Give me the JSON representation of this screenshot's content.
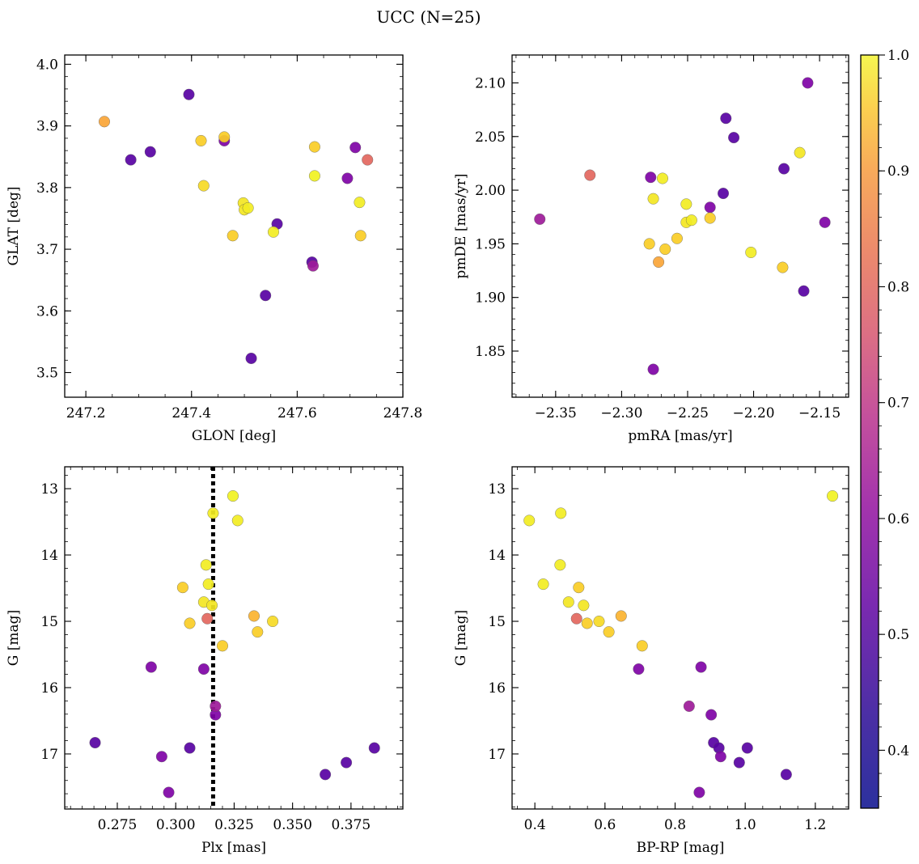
{
  "title": "UCC (N=25)",
  "colormap": "plasma",
  "colorbar": {
    "min": 0.35,
    "max": 1.0,
    "ticks": [
      0.4,
      0.5,
      0.6,
      0.7,
      0.8,
      0.9,
      1.0
    ],
    "tick_labels": [
      "0.4",
      "0.5",
      "0.6",
      "0.7",
      "0.8",
      "0.9",
      "1.0"
    ]
  },
  "chart_data": [
    {
      "type": "scatter",
      "xlabel": "GLON [deg]",
      "ylabel": "GLAT [deg]",
      "xlim": [
        247.16,
        247.8
      ],
      "ylim": [
        3.46,
        4.015
      ],
      "yinvert": false,
      "xticks": [
        247.2,
        247.4,
        247.6,
        247.8
      ],
      "xticklabels": [
        "247.2",
        "247.4",
        "247.6",
        "247.8"
      ],
      "yticks": [
        3.5,
        3.6,
        3.7,
        3.8,
        3.9,
        4.0
      ],
      "yticklabels": [
        "3.5",
        "3.6",
        "3.7",
        "3.8",
        "3.9",
        "4.0"
      ],
      "xminor": 0.05,
      "yminor": 0.02,
      "points": [
        {
          "x": 247.235,
          "y": 3.907,
          "c": 0.85
        },
        {
          "x": 247.285,
          "y": 3.845,
          "c": 0.38
        },
        {
          "x": 247.322,
          "y": 3.858,
          "c": 0.38
        },
        {
          "x": 247.395,
          "y": 3.951,
          "c": 0.38
        },
        {
          "x": 247.418,
          "y": 3.876,
          "c": 0.93
        },
        {
          "x": 247.462,
          "y": 3.876,
          "c": 0.45
        },
        {
          "x": 247.462,
          "y": 3.882,
          "c": 0.93
        },
        {
          "x": 247.423,
          "y": 3.803,
          "c": 0.95
        },
        {
          "x": 247.478,
          "y": 3.722,
          "c": 0.93
        },
        {
          "x": 247.498,
          "y": 3.775,
          "c": 0.97
        },
        {
          "x": 247.5,
          "y": 3.764,
          "c": 0.97
        },
        {
          "x": 247.507,
          "y": 3.767,
          "c": 0.98
        },
        {
          "x": 247.513,
          "y": 3.523,
          "c": 0.38
        },
        {
          "x": 247.54,
          "y": 3.625,
          "c": 0.38
        },
        {
          "x": 247.555,
          "y": 3.728,
          "c": 0.98
        },
        {
          "x": 247.562,
          "y": 3.741,
          "c": 0.38
        },
        {
          "x": 247.628,
          "y": 3.679,
          "c": 0.38
        },
        {
          "x": 247.63,
          "y": 3.673,
          "c": 0.52
        },
        {
          "x": 247.633,
          "y": 3.866,
          "c": 0.93
        },
        {
          "x": 247.633,
          "y": 3.819,
          "c": 0.99
        },
        {
          "x": 247.695,
          "y": 3.815,
          "c": 0.45
        },
        {
          "x": 247.71,
          "y": 3.865,
          "c": 0.45
        },
        {
          "x": 247.718,
          "y": 3.776,
          "c": 0.98
        },
        {
          "x": 247.72,
          "y": 3.722,
          "c": 0.93
        },
        {
          "x": 247.733,
          "y": 3.845,
          "c": 0.72
        }
      ]
    },
    {
      "type": "scatter",
      "xlabel": "pmRA [mas/yr]",
      "ylabel": "pmDE [mas/yr]",
      "xlim": [
        -2.383,
        -2.128
      ],
      "ylim": [
        1.807,
        2.126
      ],
      "yinvert": false,
      "xticks": [
        -2.35,
        -2.3,
        -2.25,
        -2.2,
        -2.15
      ],
      "xticklabels": [
        "−2.35",
        "−2.30",
        "−2.25",
        "−2.20",
        "−2.15"
      ],
      "yticks": [
        1.85,
        1.9,
        1.95,
        2.0,
        2.05,
        2.1
      ],
      "yticklabels": [
        "1.85",
        "1.90",
        "1.95",
        "2.00",
        "2.05",
        "2.10"
      ],
      "xminor": 0.01,
      "yminor": 0.01,
      "points": [
        {
          "x": -2.362,
          "y": 1.973,
          "c": 0.52
        },
        {
          "x": -2.324,
          "y": 2.014,
          "c": 0.72
        },
        {
          "x": -2.278,
          "y": 2.012,
          "c": 0.45
        },
        {
          "x": -2.276,
          "y": 1.992,
          "c": 0.97
        },
        {
          "x": -2.279,
          "y": 1.95,
          "c": 0.93
        },
        {
          "x": -2.276,
          "y": 1.833,
          "c": 0.45
        },
        {
          "x": -2.272,
          "y": 1.933,
          "c": 0.85
        },
        {
          "x": -2.269,
          "y": 2.011,
          "c": 0.98
        },
        {
          "x": -2.267,
          "y": 1.945,
          "c": 0.93
        },
        {
          "x": -2.258,
          "y": 1.955,
          "c": 0.93
        },
        {
          "x": -2.251,
          "y": 1.987,
          "c": 0.98
        },
        {
          "x": -2.251,
          "y": 1.97,
          "c": 0.97
        },
        {
          "x": -2.247,
          "y": 1.972,
          "c": 0.98
        },
        {
          "x": -2.233,
          "y": 1.974,
          "c": 0.93
        },
        {
          "x": -2.233,
          "y": 1.984,
          "c": 0.45
        },
        {
          "x": -2.223,
          "y": 1.997,
          "c": 0.38
        },
        {
          "x": -2.221,
          "y": 2.067,
          "c": 0.38
        },
        {
          "x": -2.215,
          "y": 2.049,
          "c": 0.38
        },
        {
          "x": -2.202,
          "y": 1.942,
          "c": 0.98
        },
        {
          "x": -2.178,
          "y": 1.928,
          "c": 0.93
        },
        {
          "x": -2.177,
          "y": 2.02,
          "c": 0.38
        },
        {
          "x": -2.165,
          "y": 2.035,
          "c": 0.97
        },
        {
          "x": -2.162,
          "y": 1.906,
          "c": 0.38
        },
        {
          "x": -2.159,
          "y": 2.1,
          "c": 0.45
        },
        {
          "x": -2.146,
          "y": 1.97,
          "c": 0.45
        }
      ]
    },
    {
      "type": "scatter",
      "xlabel": "Plx [mas]",
      "ylabel": "G [mag]",
      "xlim": [
        0.2525,
        0.3972
      ],
      "ylim": [
        12.67,
        17.83
      ],
      "yinvert": true,
      "xticks": [
        0.275,
        0.3,
        0.325,
        0.35,
        0.375
      ],
      "xticklabels": [
        "0.275",
        "0.300",
        "0.325",
        "0.350",
        "0.375"
      ],
      "yticks": [
        13,
        14,
        15,
        16,
        17
      ],
      "yticklabels": [
        "13",
        "14",
        "15",
        "16",
        "17"
      ],
      "xminor": 0.005,
      "yminor": 0.2,
      "vline": 0.316,
      "points": [
        {
          "x": 0.2655,
          "y": 16.83,
          "c": 0.38
        },
        {
          "x": 0.2895,
          "y": 15.69,
          "c": 0.45
        },
        {
          "x": 0.294,
          "y": 17.04,
          "c": 0.45
        },
        {
          "x": 0.297,
          "y": 17.58,
          "c": 0.45
        },
        {
          "x": 0.303,
          "y": 14.49,
          "c": 0.93
        },
        {
          "x": 0.306,
          "y": 15.03,
          "c": 0.93
        },
        {
          "x": 0.306,
          "y": 16.91,
          "c": 0.38
        },
        {
          "x": 0.312,
          "y": 15.72,
          "c": 0.45
        },
        {
          "x": 0.312,
          "y": 14.71,
          "c": 0.97
        },
        {
          "x": 0.313,
          "y": 14.15,
          "c": 0.98
        },
        {
          "x": 0.3135,
          "y": 14.96,
          "c": 0.72
        },
        {
          "x": 0.314,
          "y": 14.44,
          "c": 0.98
        },
        {
          "x": 0.3155,
          "y": 14.76,
          "c": 0.97
        },
        {
          "x": 0.316,
          "y": 13.37,
          "c": 0.98
        },
        {
          "x": 0.317,
          "y": 16.28,
          "c": 0.52
        },
        {
          "x": 0.317,
          "y": 16.41,
          "c": 0.45
        },
        {
          "x": 0.32,
          "y": 15.37,
          "c": 0.93
        },
        {
          "x": 0.3245,
          "y": 13.11,
          "c": 0.99
        },
        {
          "x": 0.3265,
          "y": 13.48,
          "c": 0.98
        },
        {
          "x": 0.3335,
          "y": 14.92,
          "c": 0.88
        },
        {
          "x": 0.335,
          "y": 15.16,
          "c": 0.93
        },
        {
          "x": 0.3415,
          "y": 15.0,
          "c": 0.95
        },
        {
          "x": 0.364,
          "y": 17.31,
          "c": 0.38
        },
        {
          "x": 0.373,
          "y": 17.13,
          "c": 0.38
        },
        {
          "x": 0.385,
          "y": 16.91,
          "c": 0.38
        }
      ]
    },
    {
      "type": "scatter",
      "xlabel": "BP-RP [mag]",
      "ylabel": "G [mag]",
      "xlim": [
        0.335,
        1.295
      ],
      "ylim": [
        12.67,
        17.83
      ],
      "yinvert": true,
      "xticks": [
        0.4,
        0.6,
        0.8,
        1.0,
        1.2
      ],
      "xticklabels": [
        "0.4",
        "0.6",
        "0.8",
        "1.0",
        "1.2"
      ],
      "yticks": [
        13,
        14,
        15,
        16,
        17
      ],
      "yticklabels": [
        "13",
        "14",
        "15",
        "16",
        "17"
      ],
      "xminor": 0.05,
      "yminor": 0.2,
      "points": [
        {
          "x": 0.384,
          "y": 13.48,
          "c": 0.98
        },
        {
          "x": 0.424,
          "y": 14.44,
          "c": 0.98
        },
        {
          "x": 0.472,
          "y": 14.15,
          "c": 0.98
        },
        {
          "x": 0.474,
          "y": 13.37,
          "c": 0.98
        },
        {
          "x": 0.496,
          "y": 14.71,
          "c": 0.97
        },
        {
          "x": 0.519,
          "y": 14.96,
          "c": 0.72
        },
        {
          "x": 0.525,
          "y": 14.49,
          "c": 0.93
        },
        {
          "x": 0.539,
          "y": 14.76,
          "c": 0.97
        },
        {
          "x": 0.549,
          "y": 15.03,
          "c": 0.93
        },
        {
          "x": 0.583,
          "y": 15.0,
          "c": 0.95
        },
        {
          "x": 0.611,
          "y": 15.16,
          "c": 0.93
        },
        {
          "x": 0.646,
          "y": 14.92,
          "c": 0.88
        },
        {
          "x": 0.696,
          "y": 15.72,
          "c": 0.45
        },
        {
          "x": 0.706,
          "y": 15.37,
          "c": 0.93
        },
        {
          "x": 0.84,
          "y": 16.28,
          "c": 0.52
        },
        {
          "x": 0.869,
          "y": 17.58,
          "c": 0.45
        },
        {
          "x": 0.874,
          "y": 15.69,
          "c": 0.45
        },
        {
          "x": 0.903,
          "y": 16.41,
          "c": 0.45
        },
        {
          "x": 0.91,
          "y": 16.83,
          "c": 0.38
        },
        {
          "x": 0.925,
          "y": 16.91,
          "c": 0.38
        },
        {
          "x": 0.93,
          "y": 17.04,
          "c": 0.45
        },
        {
          "x": 0.983,
          "y": 17.13,
          "c": 0.38
        },
        {
          "x": 1.006,
          "y": 16.91,
          "c": 0.38
        },
        {
          "x": 1.117,
          "y": 17.31,
          "c": 0.38
        },
        {
          "x": 1.249,
          "y": 13.11,
          "c": 0.99
        }
      ]
    }
  ]
}
